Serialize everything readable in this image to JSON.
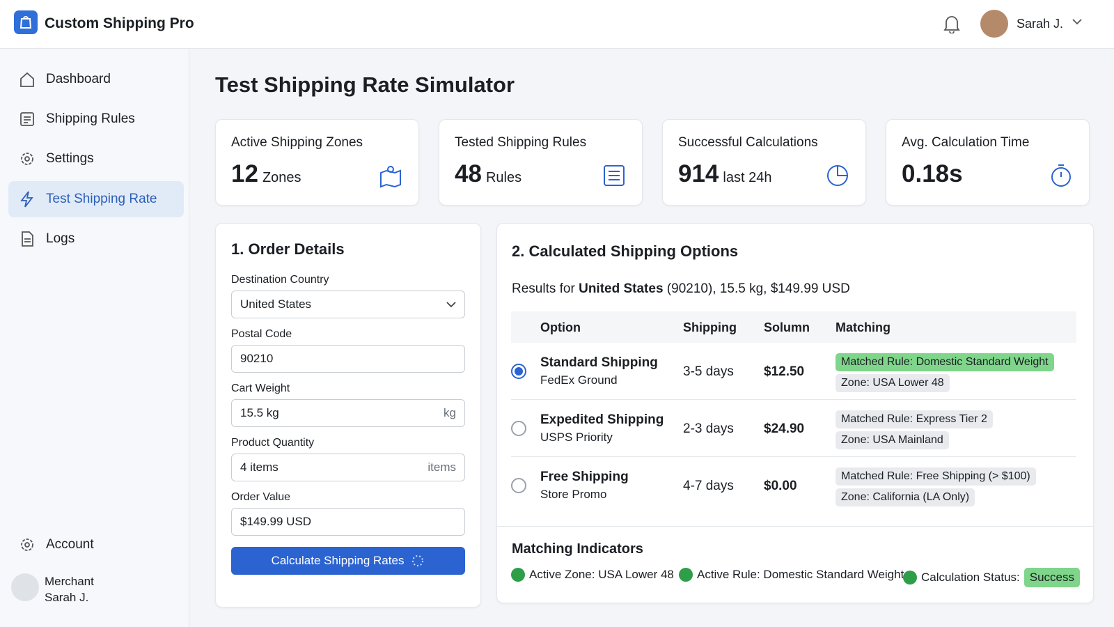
{
  "header": {
    "app_name": "Custom Shipping Pro",
    "user_name": "Sarah J."
  },
  "sidebar": {
    "nav": [
      "Dashboard",
      "Shipping Rules",
      "Settings",
      "Test Shipping Rate",
      "Logs"
    ],
    "account": "Account",
    "merchant_role": "Merchant",
    "merchant_name": "Sarah J."
  },
  "page_title": "Test Shipping Rate Simulator",
  "stats": [
    {
      "label": "Active Shipping Zones",
      "value": "12",
      "unit": "Zones"
    },
    {
      "label": "Tested Shipping Rules",
      "value": "48",
      "unit": "Rules"
    },
    {
      "label": "Successful Calculations",
      "value": "914",
      "unit": "last 24h"
    },
    {
      "label": "Avg. Calculation Time",
      "value": "0.18s"
    }
  ],
  "order": {
    "title": "1. Order Details",
    "fields": [
      {
        "label": "Destination Country",
        "value": "United States"
      },
      {
        "label": "Postal Code",
        "value": "90210"
      },
      {
        "label": "Cart Weight",
        "value": "15.5 kg",
        "suffix": "kg"
      },
      {
        "label": "Product Quantity",
        "value": "4 items",
        "suffix": "items"
      },
      {
        "label": "Order Value",
        "value": "$149.99 USD"
      }
    ],
    "button": "Calculate Shipping Rates"
  },
  "results": {
    "title": "2. Calculated Shipping Options",
    "summary_prefix": "Results for",
    "summary_country": "United States",
    "summary_rest": "(90210), 15.5 kg, $149.99 USD",
    "columns": [
      "Option",
      "Shipping",
      "Solumn",
      "Matching"
    ],
    "rows": [
      {
        "name": "Standard Shipping",
        "carrier": "FedEx Ground",
        "time": "3-5 days",
        "price": "$12.50",
        "rule": "Matched Rule: Domestic Standard Weight",
        "zone": "Zone: USA Lower 48"
      },
      {
        "name": "Expedited Shipping",
        "carrier": "USPS Priority",
        "time": "2-3 days",
        "price": "$24.90",
        "rule": "Matched Rule: Express Tier 2",
        "zone": "Zone: USA Mainland"
      },
      {
        "name": "Free Shipping",
        "carrier": "Store Promo",
        "time": "4-7 days",
        "price": "$0.00",
        "rule": "Matched Rule: Free Shipping (> $100)",
        "zone": "Zone: California (LA Only)"
      }
    ]
  },
  "indicators": {
    "title": "Matching Indicators",
    "items": [
      "Active Zone: USA Lower 48",
      "Active Rule: Domestic Standard Weight",
      "Calculation Status:"
    ],
    "status": "Success"
  }
}
